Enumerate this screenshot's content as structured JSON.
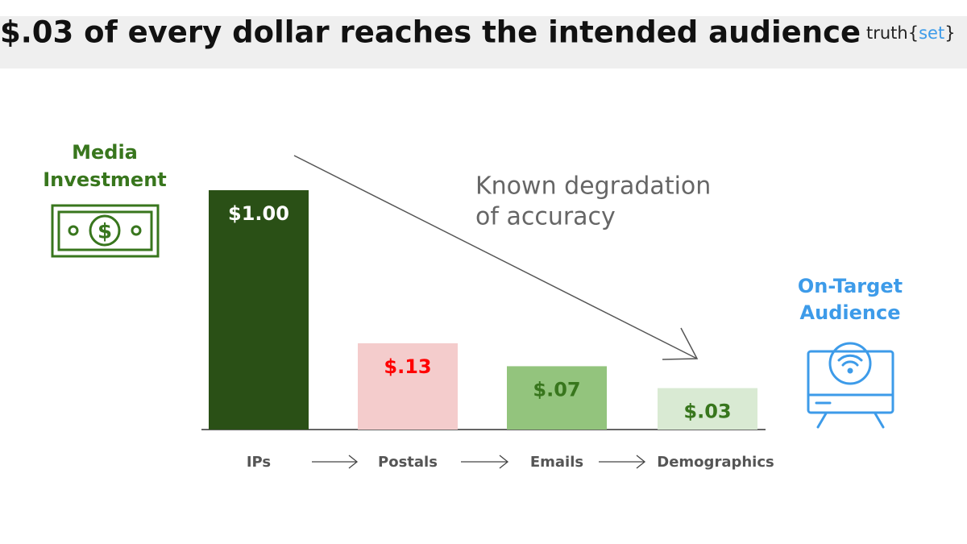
{
  "chart_data": {
    "type": "bar",
    "title": "$.03 of every dollar reaches the intended audience",
    "logo": [
      "truth{",
      "set",
      "}"
    ],
    "categories": [
      "IPs",
      "Postals",
      "Emails",
      "Demographics"
    ],
    "values": [
      1.0,
      0.13,
      0.07,
      0.03
    ],
    "value_labels": [
      "$1.00",
      "$.13",
      "$.07",
      "$.03"
    ],
    "colors": [
      "#2a5016",
      "#f4cccc",
      "#93c47d",
      "#d9ead3"
    ],
    "label_colors": [
      "#ffffff",
      "#ff0000",
      "#38761d",
      "#38761d"
    ],
    "annotations": {
      "left": [
        "Media",
        "Investment"
      ],
      "arrow": [
        "Known degradation",
        "of accuracy"
      ],
      "right": [
        "On-Target",
        "Audience"
      ]
    }
  }
}
